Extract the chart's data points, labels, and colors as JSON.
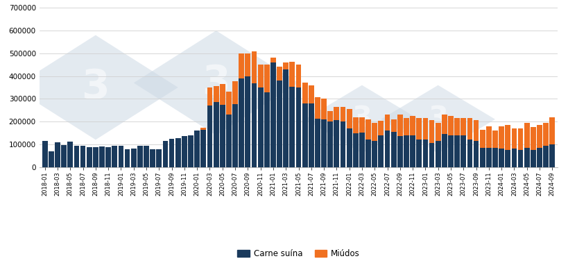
{
  "carne_suina_vals": [
    115000,
    68000,
    110000,
    98000,
    112000,
    95000,
    95000,
    87000,
    87000,
    90000,
    87000,
    92000,
    92000,
    78000,
    80000,
    92000,
    92000,
    78000,
    78000,
    115000,
    125000,
    127000,
    135000,
    138000,
    160000,
    163000,
    270000,
    285000,
    275000,
    232000,
    278000,
    390000,
    400000,
    368000,
    350000,
    330000,
    460000,
    380000,
    430000,
    352000,
    350000,
    280000,
    280000,
    212000,
    210000,
    200000,
    205000,
    200000,
    170000,
    148000,
    150000,
    120000,
    115000,
    138000,
    160000,
    155000,
    135000,
    140000,
    140000,
    120000,
    120000,
    105000,
    115000,
    145000,
    140000,
    140000,
    140000,
    120000,
    115000,
    85000,
    85000,
    85000,
    80000,
    75000,
    80000,
    75000,
    85000,
    75000,
    85000,
    95000,
    100000
  ],
  "miudos_vals": [
    0,
    0,
    0,
    0,
    0,
    0,
    0,
    0,
    0,
    0,
    0,
    0,
    0,
    0,
    0,
    0,
    0,
    0,
    0,
    0,
    0,
    0,
    0,
    0,
    0,
    10000,
    80000,
    70000,
    90000,
    100000,
    100000,
    110000,
    100000,
    140000,
    100000,
    120000,
    20000,
    60000,
    30000,
    110000,
    100000,
    90000,
    80000,
    95000,
    90000,
    45000,
    60000,
    65000,
    85000,
    70000,
    70000,
    90000,
    80000,
    65000,
    70000,
    55000,
    95000,
    75000,
    85000,
    95000,
    95000,
    100000,
    80000,
    85000,
    85000,
    75000,
    75000,
    95000,
    90000,
    80000,
    95000,
    75000,
    100000,
    110000,
    90000,
    95000,
    110000,
    100000,
    100000,
    100000,
    120000
  ],
  "bar_color_carne": "#1a3a5c",
  "bar_color_miudos": "#f07020",
  "ylim_max": 700000,
  "yticks": [
    0,
    100000,
    200000,
    300000,
    400000,
    500000,
    600000,
    700000
  ],
  "legend_carne": "Carne suína",
  "legend_miudos": "Miúdos",
  "background_color": "#ffffff",
  "watermark_color": "#cdd9e5",
  "grid_color": "#d0d0d0",
  "figsize": [
    8.2,
    3.76
  ],
  "dpi": 100
}
